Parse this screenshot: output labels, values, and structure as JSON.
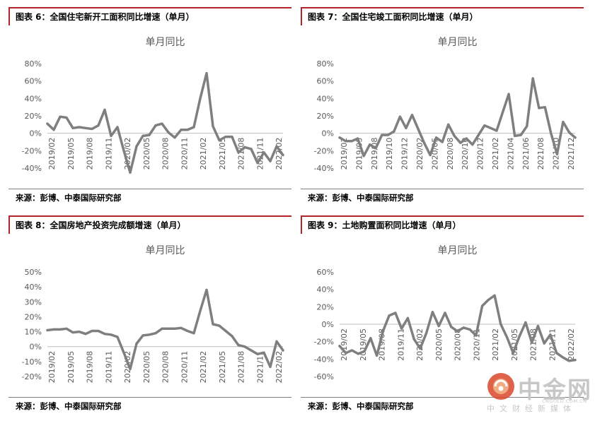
{
  "panels": [
    {
      "title": "图表 6：全国住宅新开工面积同比增速（单月）",
      "source": "来源：彭博、中泰国际研究部",
      "chart_data": {
        "type": "line",
        "title": "单月同比",
        "ylim": [
          -40,
          80
        ],
        "yticks": [
          80,
          60,
          40,
          20,
          0,
          -20,
          -40
        ],
        "tick_labels": [
          "2019/02",
          "2019/05",
          "2019/08",
          "2019/11",
          "2020/02",
          "2020/05",
          "2020/08",
          "2020/11",
          "2021/02",
          "2021/05",
          "2021/08",
          "2021/11",
          "2022/02"
        ],
        "color": "#7f7f7f",
        "series": [
          {
            "values": [
              11,
              4,
              19,
              18,
              6,
              7,
              6,
              5,
              9,
              27,
              -3,
              7,
              -20,
              -45,
              -15,
              -3,
              -2,
              9,
              11,
              1,
              -5,
              4,
              4,
              7,
              40,
              69,
              8,
              -8,
              -4,
              -4,
              -22,
              -16,
              -18,
              -34,
              -22,
              -32,
              -15,
              -25
            ]
          }
        ]
      }
    },
    {
      "title": "图表 7：全国住宅竣工面积同比增速（单月）",
      "source": "来源：彭博、中泰国际研究部",
      "chart_data": {
        "type": "line",
        "title": "单月同比",
        "ylim": [
          -40,
          80
        ],
        "yticks": [
          80,
          60,
          40,
          20,
          0,
          -20,
          -40
        ],
        "tick_labels": [
          "2019/02",
          "2019/05",
          "2019/08",
          "2019/10",
          "2019/12",
          "2020/02",
          "2020/05",
          "2020/08",
          "2020/10",
          "2020/12",
          "2021/02",
          "2021/04",
          "2021/06",
          "2021/08",
          "2021/10",
          "2021/12"
        ],
        "color": "#7f7f7f",
        "series": [
          {
            "values": [
              -5,
              -9,
              -9,
              -6,
              -26,
              -13,
              -17,
              -2,
              -2,
              2,
              19,
              6,
              21,
              5,
              -11,
              -25,
              -5,
              -10,
              10,
              -3,
              -11,
              -6,
              -13,
              -2,
              9,
              6,
              3,
              24,
              45,
              -3,
              -2,
              8,
              63,
              29,
              30,
              0,
              -24,
              13,
              1,
              -5
            ]
          }
        ]
      }
    },
    {
      "title": "图表 8：全国房地产投资完成额增速（单月）",
      "source": "来源：彭博、中泰国际研究部",
      "chart_data": {
        "type": "line",
        "title": "单月同比",
        "ylim": [
          -20,
          50
        ],
        "yticks": [
          50,
          40,
          30,
          20,
          10,
          0,
          -10,
          -20
        ],
        "tick_labels": [
          "2019/02",
          "2019/05",
          "2019/08",
          "2019/11",
          "2020/02",
          "2020/05",
          "2020/08",
          "2020/11",
          "2021/02",
          "2021/05",
          "2021/08",
          "2021/11",
          "2022/02"
        ],
        "color": "#7f7f7f",
        "series": [
          {
            "values": [
              11,
              11.5,
              11.5,
              12,
              9.5,
              10,
              8.5,
              10.5,
              10.5,
              8.5,
              8,
              6.5,
              -4,
              -15,
              2,
              7.5,
              8,
              9,
              12,
              12,
              12,
              12.5,
              10.5,
              9,
              24,
              38,
              15,
              14,
              10.5,
              7,
              1,
              0,
              -2.5,
              -5,
              -4,
              -13.5,
              3.5,
              -2.5
            ]
          }
        ]
      }
    },
    {
      "title": "图表 9：土地购置面积同比增速（单月）",
      "source": "来源：彭博、中泰国际研究部",
      "chart_data": {
        "type": "line",
        "title": "单月同比",
        "ylim": [
          -60,
          60
        ],
        "yticks": [
          60,
          40,
          20,
          0,
          -20,
          -40,
          -60
        ],
        "tick_labels": [
          "2019/02",
          "2019/05",
          "2019/08",
          "2019/11",
          "2020/02",
          "2020/05",
          "2020/08",
          "2020/11",
          "2021/02",
          "2021/05",
          "2021/08",
          "2021/11",
          "2022/02"
        ],
        "color": "#7f7f7f",
        "series": [
          {
            "values": [
              -25,
              -33,
              -30,
              -34,
              -31,
              -16,
              -36,
              -8,
              10,
              13,
              -5,
              7,
              -17,
              -28,
              -10,
              14,
              -2,
              13,
              -3,
              -8,
              -4,
              -6,
              -13,
              21,
              28,
              33,
              0,
              -15,
              -33,
              -14,
              2,
              -21,
              -2,
              -22,
              -12,
              -33,
              -38,
              -42,
              -41
            ]
          }
        ]
      }
    }
  ],
  "watermark": {
    "name": "中金网",
    "url": "CNGOLD.COM.CN",
    "sub": "中文财经新媒体"
  }
}
